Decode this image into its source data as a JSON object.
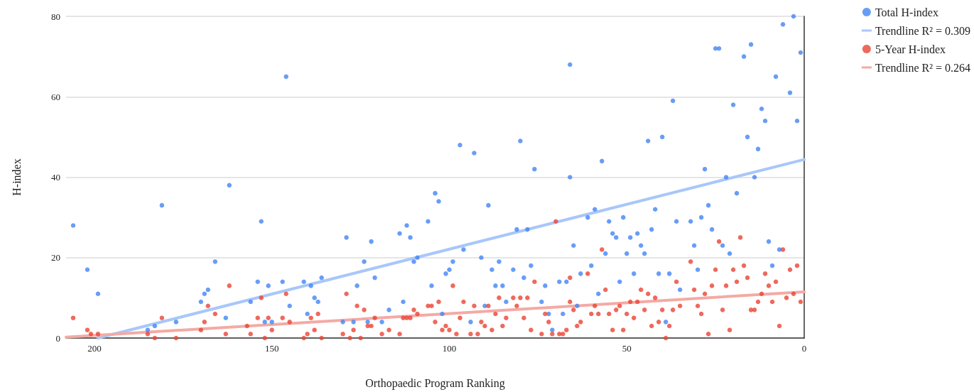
{
  "chart_data": {
    "type": "scatter",
    "xlabel": "Orthopaedic Program Ranking",
    "ylabel": "H-index",
    "xlim": [
      208,
      0
    ],
    "xticks": [
      200,
      150,
      100,
      50,
      0
    ],
    "ylim": [
      0,
      80
    ],
    "yticks": [
      0,
      20,
      40,
      60,
      80
    ],
    "grid": "y",
    "legend": "top right",
    "marker": "circle",
    "series": [
      {
        "name": "Total H-index",
        "color": "#4285f4",
        "x": [
          206,
          202,
          199,
          185,
          183,
          181,
          177,
          170,
          169,
          168,
          166,
          163,
          162,
          156,
          154,
          153,
          152,
          151,
          150,
          147,
          146,
          145,
          141,
          140,
          139,
          138,
          137,
          136,
          130,
          129,
          127,
          126,
          124,
          123,
          122,
          121,
          119,
          117,
          114,
          113,
          112,
          111,
          110,
          109,
          106,
          105,
          104,
          103,
          102,
          101,
          100,
          99,
          97,
          96,
          94,
          93,
          91,
          90,
          89,
          88,
          87,
          86,
          85,
          84,
          82,
          81,
          80,
          79,
          78,
          77,
          76,
          74,
          73,
          72,
          71,
          69,
          68,
          67,
          66,
          66,
          65,
          64,
          63,
          61,
          60,
          59,
          58,
          57,
          56,
          55,
          54,
          53,
          52,
          51,
          50,
          49,
          48,
          47,
          46,
          45,
          44,
          43,
          42,
          41,
          40,
          39,
          38,
          37,
          36,
          35,
          32,
          31,
          30,
          29,
          28,
          27,
          26,
          25,
          24,
          23,
          22,
          21,
          20,
          19,
          17,
          16,
          15,
          14,
          13,
          12,
          11,
          10,
          9,
          8,
          7,
          6,
          4,
          3,
          2,
          1
        ],
        "values": [
          28,
          17,
          11,
          2,
          3,
          33,
          4,
          9,
          11,
          12,
          19,
          5,
          38,
          9,
          14,
          29,
          4,
          13,
          4,
          14,
          65,
          8,
          14,
          6,
          13,
          10,
          9,
          15,
          4,
          25,
          4,
          13,
          19,
          4,
          24,
          15,
          4,
          7,
          26,
          9,
          28,
          25,
          19,
          20,
          29,
          13,
          36,
          34,
          6,
          16,
          17,
          19,
          48,
          22,
          4,
          46,
          20,
          8,
          33,
          17,
          13,
          19,
          13,
          9,
          17,
          27,
          49,
          15,
          27,
          18,
          42,
          9,
          13,
          6,
          2,
          14,
          6,
          14,
          68,
          40,
          23,
          8,
          16,
          30,
          18,
          32,
          11,
          44,
          21,
          29,
          26,
          25,
          14,
          30,
          21,
          25,
          16,
          26,
          23,
          21,
          49,
          27,
          32,
          16,
          50,
          4,
          16,
          59,
          29,
          12,
          29,
          23,
          17,
          30,
          42,
          33,
          27,
          72,
          72,
          23,
          40,
          21,
          58,
          36,
          70,
          50,
          73,
          40,
          47,
          57,
          54,
          24,
          18,
          65,
          22,
          78,
          61,
          80,
          54,
          71
        ]
      },
      {
        "name": "Trendline R² = 0.309",
        "type": "line",
        "marker": "none",
        "color": "#a8c7fa",
        "x": [
          199,
          0
        ],
        "values": [
          0,
          44.4
        ]
      },
      {
        "name": "5-Year H-index",
        "color": "#ea4335",
        "x": [
          206,
          202,
          201,
          199,
          185,
          183,
          181,
          177,
          170,
          169,
          168,
          166,
          163,
          162,
          157,
          156,
          154,
          153,
          152,
          151,
          150,
          147,
          146,
          145,
          141,
          140,
          139,
          138,
          137,
          136,
          130,
          129,
          128,
          127,
          126,
          125,
          124,
          123,
          122,
          121,
          119,
          117,
          114,
          113,
          112,
          111,
          110,
          109,
          106,
          105,
          104,
          103,
          102,
          101,
          100,
          99,
          98,
          97,
          96,
          94,
          93,
          92,
          91,
          90,
          89,
          88,
          87,
          86,
          85,
          84,
          82,
          81,
          80,
          79,
          78,
          77,
          76,
          74,
          73,
          72,
          71,
          70,
          69,
          68,
          67,
          66,
          66,
          65,
          64,
          63,
          61,
          60,
          59,
          58,
          57,
          56,
          55,
          54,
          53,
          52,
          51,
          50,
          49,
          48,
          47,
          46,
          45,
          44,
          43,
          42,
          41,
          40,
          39,
          38,
          37,
          36,
          35,
          32,
          31,
          30,
          29,
          28,
          27,
          26,
          25,
          24,
          23,
          22,
          21,
          20,
          19,
          18,
          17,
          16,
          15,
          14,
          13,
          12,
          11,
          10,
          9,
          8,
          7,
          6,
          5,
          4,
          3,
          2,
          1
        ],
        "values": [
          5,
          2,
          1,
          1,
          1,
          0,
          5,
          0,
          2,
          4,
          8,
          6,
          1,
          13,
          3,
          1,
          5,
          10,
          0,
          5,
          2,
          5,
          11,
          4,
          0,
          1,
          5,
          2,
          6,
          0,
          1,
          11,
          0,
          2,
          8,
          0,
          7,
          3,
          3,
          5,
          1,
          2,
          1,
          5,
          5,
          5,
          7,
          6,
          8,
          8,
          4,
          9,
          2,
          3,
          2,
          13,
          1,
          5,
          9,
          1,
          8,
          1,
          4,
          3,
          8,
          2,
          6,
          10,
          3,
          5,
          10,
          8,
          10,
          5,
          10,
          2,
          14,
          1,
          6,
          4,
          1,
          29,
          1,
          1,
          2,
          15,
          9,
          7,
          3,
          4,
          16,
          6,
          8,
          6,
          22,
          12,
          6,
          2,
          7,
          8,
          2,
          6,
          9,
          5,
          9,
          12,
          7,
          11,
          3,
          10,
          4,
          7,
          0,
          3,
          7,
          14,
          8,
          19,
          12,
          8,
          6,
          11,
          1,
          13,
          17,
          24,
          7,
          13,
          2,
          17,
          14,
          25,
          18,
          15,
          7,
          7,
          9,
          11,
          16,
          13,
          9,
          14,
          3,
          22,
          10,
          17,
          11,
          18,
          9
        ]
      },
      {
        "name": "Trendline R² = 0.264",
        "type": "line",
        "marker": "none",
        "color": "#f4aaa4",
        "x": [
          208,
          0
        ],
        "values": [
          0.2,
          11.5
        ]
      }
    ]
  }
}
